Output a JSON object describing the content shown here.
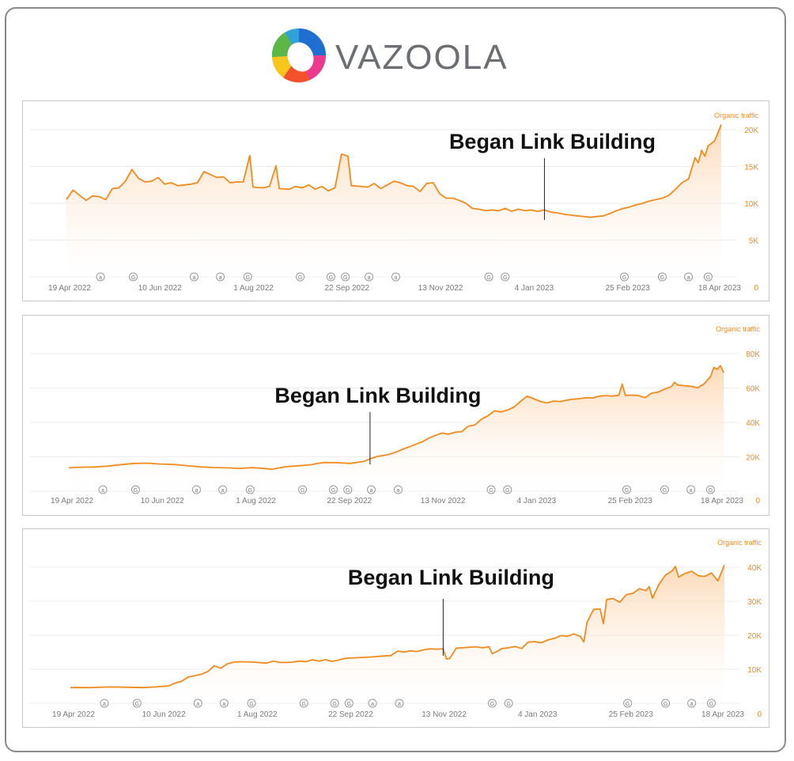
{
  "brand": {
    "name": "VAZOOLA"
  },
  "colors": {
    "line": "#f28b1e",
    "fill_top": "#fcd5ae",
    "axis_text": "#f28b1e",
    "date_text": "#7a7a7a",
    "grid": "#ececec"
  },
  "chart_data": [
    {
      "type": "area",
      "series_label": "Organic traffic",
      "annotation": {
        "text": "Began Link Building",
        "x": 0.73
      },
      "yticks": [
        "5K",
        "10K",
        "15K",
        "20K"
      ],
      "ytick_values": [
        5000,
        10000,
        15000,
        20000
      ],
      "zero_label": "0",
      "ylim": [
        0,
        20000
      ],
      "xlabels": [
        "19 Apr 2022",
        "10 Jun 2022",
        "1 Aug 2022",
        "22 Sep 2022",
        "13 Nov 2022",
        "4 Jan 2023",
        "25 Feb 2023",
        "18 Apr 2023"
      ],
      "markers": [
        [
          "a",
          0.052
        ],
        [
          "G",
          0.102
        ],
        [
          "a",
          0.195
        ],
        [
          "a",
          0.235
        ],
        [
          "G",
          0.277
        ],
        [
          "G",
          0.357
        ],
        [
          "G",
          0.404
        ],
        [
          "G",
          0.426
        ],
        [
          "a",
          0.462
        ],
        [
          "a",
          0.503
        ],
        [
          "G",
          0.645
        ],
        [
          "G",
          0.67
        ],
        [
          "G",
          0.852
        ],
        [
          "G",
          0.91
        ],
        [
          "a",
          0.95
        ],
        [
          "G",
          0.98
        ]
      ],
      "values": [
        [
          0,
          10500
        ],
        [
          0.01,
          11800
        ],
        [
          0.02,
          11100
        ],
        [
          0.03,
          10400
        ],
        [
          0.04,
          11000
        ],
        [
          0.05,
          10900
        ],
        [
          0.06,
          10500
        ],
        [
          0.07,
          12000
        ],
        [
          0.08,
          12100
        ],
        [
          0.09,
          13000
        ],
        [
          0.1,
          14600
        ],
        [
          0.11,
          13400
        ],
        [
          0.12,
          12900
        ],
        [
          0.13,
          13000
        ],
        [
          0.14,
          13500
        ],
        [
          0.15,
          12600
        ],
        [
          0.16,
          12800
        ],
        [
          0.17,
          12400
        ],
        [
          0.18,
          12500
        ],
        [
          0.19,
          12600
        ],
        [
          0.2,
          12800
        ],
        [
          0.21,
          14300
        ],
        [
          0.22,
          13900
        ],
        [
          0.23,
          13500
        ],
        [
          0.24,
          13600
        ],
        [
          0.25,
          12800
        ],
        [
          0.26,
          12900
        ],
        [
          0.27,
          12900
        ],
        [
          0.28,
          16500
        ],
        [
          0.285,
          12200
        ],
        [
          0.3,
          12100
        ],
        [
          0.31,
          12300
        ],
        [
          0.32,
          15100
        ],
        [
          0.325,
          12000
        ],
        [
          0.34,
          11900
        ],
        [
          0.35,
          12300
        ],
        [
          0.36,
          12100
        ],
        [
          0.37,
          12500
        ],
        [
          0.38,
          11900
        ],
        [
          0.39,
          12300
        ],
        [
          0.4,
          11700
        ],
        [
          0.41,
          12100
        ],
        [
          0.42,
          16700
        ],
        [
          0.43,
          16400
        ],
        [
          0.435,
          12400
        ],
        [
          0.45,
          12300
        ],
        [
          0.46,
          12200
        ],
        [
          0.47,
          12700
        ],
        [
          0.48,
          12000
        ],
        [
          0.49,
          12500
        ],
        [
          0.5,
          13000
        ],
        [
          0.51,
          12800
        ],
        [
          0.52,
          12400
        ],
        [
          0.53,
          12300
        ],
        [
          0.54,
          11600
        ],
        [
          0.55,
          12700
        ],
        [
          0.56,
          12800
        ],
        [
          0.57,
          11300
        ],
        [
          0.58,
          10700
        ],
        [
          0.59,
          10700
        ],
        [
          0.6,
          10400
        ],
        [
          0.61,
          10000
        ],
        [
          0.62,
          9300
        ],
        [
          0.63,
          9200
        ],
        [
          0.64,
          9000
        ],
        [
          0.65,
          9100
        ],
        [
          0.66,
          9000
        ],
        [
          0.67,
          9300
        ],
        [
          0.68,
          8900
        ],
        [
          0.69,
          9200
        ],
        [
          0.7,
          9000
        ],
        [
          0.71,
          9100
        ],
        [
          0.72,
          8900
        ],
        [
          0.73,
          9100
        ],
        [
          0.74,
          8800
        ],
        [
          0.75,
          8700
        ],
        [
          0.76,
          8500
        ],
        [
          0.77,
          8400
        ],
        [
          0.78,
          8300
        ],
        [
          0.79,
          8200
        ],
        [
          0.8,
          8100
        ],
        [
          0.81,
          8200
        ],
        [
          0.82,
          8300
        ],
        [
          0.83,
          8600
        ],
        [
          0.84,
          9000
        ],
        [
          0.85,
          9300
        ],
        [
          0.86,
          9500
        ],
        [
          0.87,
          9800
        ],
        [
          0.88,
          10000
        ],
        [
          0.89,
          10300
        ],
        [
          0.9,
          10500
        ],
        [
          0.91,
          10700
        ],
        [
          0.92,
          11100
        ],
        [
          0.93,
          11900
        ],
        [
          0.94,
          12800
        ],
        [
          0.95,
          13300
        ],
        [
          0.96,
          16200
        ],
        [
          0.965,
          15500
        ],
        [
          0.97,
          17200
        ],
        [
          0.975,
          16400
        ],
        [
          0.98,
          17800
        ],
        [
          0.99,
          18500
        ],
        [
          1.0,
          20700
        ]
      ]
    },
    {
      "type": "area",
      "series_label": "Organic traffic",
      "annotation": {
        "text": "Began Link Building",
        "x": 0.46
      },
      "yticks": [
        "20K",
        "40K",
        "60K",
        "80K"
      ],
      "ytick_values": [
        20000,
        40000,
        60000,
        80000
      ],
      "zero_label": "0",
      "ylim": [
        0,
        80000
      ],
      "xlabels": [
        "19 Apr 2022",
        "10 Jun 2022",
        "1 Aug 2022",
        "22 Sep 2022",
        "13 Nov 2022",
        "4 Jan 2023",
        "25 Feb 2023",
        "18 Apr 2023"
      ],
      "markers": [
        [
          "a",
          0.052
        ],
        [
          "G",
          0.102
        ],
        [
          "a",
          0.195
        ],
        [
          "a",
          0.235
        ],
        [
          "G",
          0.277
        ],
        [
          "G",
          0.357
        ],
        [
          "G",
          0.404
        ],
        [
          "G",
          0.426
        ],
        [
          "a",
          0.462
        ],
        [
          "a",
          0.503
        ],
        [
          "G",
          0.645
        ],
        [
          "G",
          0.67
        ],
        [
          "G",
          0.852
        ],
        [
          "G",
          0.91
        ],
        [
          "a",
          0.95
        ],
        [
          "G",
          0.98
        ]
      ],
      "values": [
        [
          0,
          13600
        ],
        [
          0.02,
          14000
        ],
        [
          0.04,
          14100
        ],
        [
          0.06,
          14600
        ],
        [
          0.08,
          15500
        ],
        [
          0.1,
          16200
        ],
        [
          0.12,
          16300
        ],
        [
          0.14,
          15800
        ],
        [
          0.16,
          15600
        ],
        [
          0.18,
          14900
        ],
        [
          0.2,
          14200
        ],
        [
          0.22,
          13800
        ],
        [
          0.24,
          13600
        ],
        [
          0.26,
          13300
        ],
        [
          0.28,
          13700
        ],
        [
          0.3,
          13200
        ],
        [
          0.31,
          12800
        ],
        [
          0.33,
          14200
        ],
        [
          0.35,
          14800
        ],
        [
          0.37,
          15400
        ],
        [
          0.38,
          16200
        ],
        [
          0.39,
          16700
        ],
        [
          0.41,
          16600
        ],
        [
          0.43,
          16200
        ],
        [
          0.45,
          17300
        ],
        [
          0.46,
          18800
        ],
        [
          0.47,
          20200
        ],
        [
          0.48,
          20800
        ],
        [
          0.49,
          21500
        ],
        [
          0.5,
          22800
        ],
        [
          0.51,
          24400
        ],
        [
          0.52,
          25800
        ],
        [
          0.53,
          27300
        ],
        [
          0.54,
          28800
        ],
        [
          0.55,
          30900
        ],
        [
          0.56,
          32500
        ],
        [
          0.57,
          33800
        ],
        [
          0.58,
          33200
        ],
        [
          0.59,
          34300
        ],
        [
          0.6,
          34600
        ],
        [
          0.61,
          37800
        ],
        [
          0.62,
          38500
        ],
        [
          0.63,
          41800
        ],
        [
          0.64,
          43800
        ],
        [
          0.65,
          46700
        ],
        [
          0.66,
          46100
        ],
        [
          0.67,
          47200
        ],
        [
          0.68,
          48900
        ],
        [
          0.69,
          52300
        ],
        [
          0.7,
          55200
        ],
        [
          0.71,
          53800
        ],
        [
          0.72,
          52200
        ],
        [
          0.73,
          51300
        ],
        [
          0.74,
          52400
        ],
        [
          0.75,
          52100
        ],
        [
          0.76,
          52900
        ],
        [
          0.77,
          53500
        ],
        [
          0.78,
          53800
        ],
        [
          0.79,
          54400
        ],
        [
          0.8,
          54200
        ],
        [
          0.81,
          55300
        ],
        [
          0.82,
          55600
        ],
        [
          0.83,
          55300
        ],
        [
          0.84,
          55800
        ],
        [
          0.845,
          62300
        ],
        [
          0.85,
          55700
        ],
        [
          0.86,
          55900
        ],
        [
          0.87,
          55600
        ],
        [
          0.88,
          54400
        ],
        [
          0.89,
          57000
        ],
        [
          0.9,
          57600
        ],
        [
          0.91,
          59400
        ],
        [
          0.92,
          60800
        ],
        [
          0.925,
          63300
        ],
        [
          0.93,
          61800
        ],
        [
          0.94,
          61400
        ],
        [
          0.95,
          61000
        ],
        [
          0.96,
          60100
        ],
        [
          0.97,
          62400
        ],
        [
          0.98,
          66600
        ],
        [
          0.985,
          72000
        ],
        [
          0.99,
          70800
        ],
        [
          0.995,
          73000
        ],
        [
          1.0,
          69000
        ]
      ]
    },
    {
      "type": "area",
      "series_label": "Organic traffic",
      "annotation": {
        "text": "Began Link Building",
        "x": 0.57
      },
      "yticks": [
        "10K",
        "20K",
        "30K",
        "40K"
      ],
      "ytick_values": [
        10000,
        20000,
        30000,
        40000
      ],
      "zero_label": "0",
      "ylim": [
        0,
        40000
      ],
      "xlabels": [
        "19 Apr 2022",
        "10 Jun 2022",
        "1 Aug 2022",
        "22 Sep 2022",
        "13 Nov 2022",
        "4 Jan 2023",
        "25 Feb 2023",
        "18 Apr 2023"
      ],
      "markers": [
        [
          "a",
          0.052
        ],
        [
          "G",
          0.102
        ],
        [
          "a",
          0.195
        ],
        [
          "a",
          0.235
        ],
        [
          "G",
          0.277
        ],
        [
          "G",
          0.357
        ],
        [
          "G",
          0.404
        ],
        [
          "G",
          0.426
        ],
        [
          "a",
          0.462
        ],
        [
          "a",
          0.503
        ],
        [
          "G",
          0.645
        ],
        [
          "G",
          0.67
        ],
        [
          "G",
          0.852
        ],
        [
          "G",
          0.91
        ],
        [
          "a",
          0.95
        ],
        [
          "G",
          0.98
        ]
      ],
      "values": [
        [
          0,
          4600
        ],
        [
          0.03,
          4600
        ],
        [
          0.06,
          4800
        ],
        [
          0.09,
          4700
        ],
        [
          0.11,
          4600
        ],
        [
          0.13,
          4800
        ],
        [
          0.15,
          5100
        ],
        [
          0.16,
          5900
        ],
        [
          0.17,
          6500
        ],
        [
          0.18,
          7700
        ],
        [
          0.19,
          8100
        ],
        [
          0.2,
          8500
        ],
        [
          0.21,
          9300
        ],
        [
          0.22,
          11000
        ],
        [
          0.23,
          10300
        ],
        [
          0.24,
          11600
        ],
        [
          0.25,
          12100
        ],
        [
          0.26,
          12200
        ],
        [
          0.28,
          12100
        ],
        [
          0.3,
          11800
        ],
        [
          0.31,
          12400
        ],
        [
          0.32,
          12000
        ],
        [
          0.33,
          12000
        ],
        [
          0.34,
          12100
        ],
        [
          0.35,
          12400
        ],
        [
          0.36,
          12200
        ],
        [
          0.37,
          12800
        ],
        [
          0.38,
          12400
        ],
        [
          0.39,
          12800
        ],
        [
          0.4,
          12300
        ],
        [
          0.41,
          12700
        ],
        [
          0.42,
          13200
        ],
        [
          0.44,
          13400
        ],
        [
          0.46,
          13600
        ],
        [
          0.48,
          13900
        ],
        [
          0.49,
          14000
        ],
        [
          0.5,
          15300
        ],
        [
          0.51,
          15100
        ],
        [
          0.52,
          15400
        ],
        [
          0.53,
          15200
        ],
        [
          0.54,
          15700
        ],
        [
          0.55,
          16000
        ],
        [
          0.56,
          15900
        ],
        [
          0.57,
          16000
        ],
        [
          0.575,
          13000
        ],
        [
          0.58,
          13200
        ],
        [
          0.59,
          16200
        ],
        [
          0.6,
          16300
        ],
        [
          0.61,
          16500
        ],
        [
          0.62,
          16600
        ],
        [
          0.63,
          16300
        ],
        [
          0.64,
          16600
        ],
        [
          0.645,
          14600
        ],
        [
          0.65,
          15000
        ],
        [
          0.66,
          16100
        ],
        [
          0.67,
          16300
        ],
        [
          0.68,
          16700
        ],
        [
          0.69,
          16100
        ],
        [
          0.7,
          18000
        ],
        [
          0.71,
          18100
        ],
        [
          0.72,
          17800
        ],
        [
          0.73,
          18600
        ],
        [
          0.74,
          19100
        ],
        [
          0.75,
          19900
        ],
        [
          0.76,
          19700
        ],
        [
          0.77,
          20400
        ],
        [
          0.78,
          19600
        ],
        [
          0.785,
          18000
        ],
        [
          0.79,
          23800
        ],
        [
          0.8,
          27600
        ],
        [
          0.81,
          27700
        ],
        [
          0.815,
          23400
        ],
        [
          0.82,
          30500
        ],
        [
          0.83,
          30800
        ],
        [
          0.84,
          29700
        ],
        [
          0.85,
          31900
        ],
        [
          0.86,
          32300
        ],
        [
          0.87,
          33700
        ],
        [
          0.88,
          33100
        ],
        [
          0.885,
          34300
        ],
        [
          0.89,
          30900
        ],
        [
          0.9,
          35000
        ],
        [
          0.91,
          37700
        ],
        [
          0.92,
          38900
        ],
        [
          0.925,
          40200
        ],
        [
          0.93,
          37100
        ],
        [
          0.94,
          38200
        ],
        [
          0.95,
          38800
        ],
        [
          0.96,
          37500
        ],
        [
          0.97,
          37300
        ],
        [
          0.98,
          38300
        ],
        [
          0.99,
          36000
        ],
        [
          1.0,
          40600
        ]
      ]
    }
  ]
}
